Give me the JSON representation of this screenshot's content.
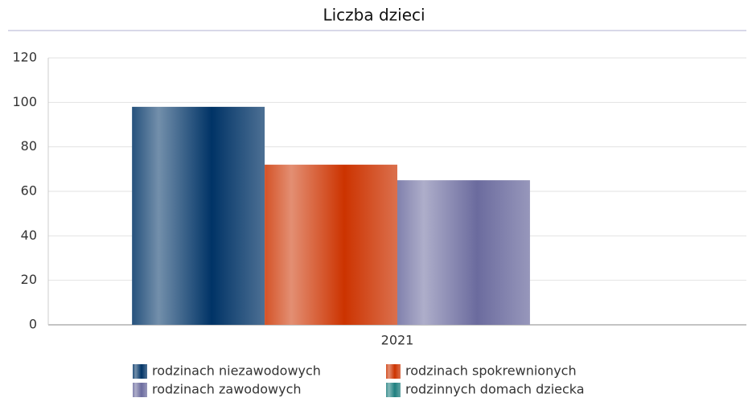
{
  "chart_data": {
    "type": "bar",
    "title": "Liczba dzieci",
    "categories": [
      "2021"
    ],
    "series": [
      {
        "name": "rodzinach niezawodowych",
        "color": "#003366",
        "values": [
          98
        ]
      },
      {
        "name": "rodzinach spokrewnionych",
        "color": "#cc3300",
        "values": [
          72
        ]
      },
      {
        "name": "rodzinach zawodowych",
        "color": "#6b6b9e",
        "values": [
          65
        ]
      },
      {
        "name": "rodzinnych domach dziecka",
        "color": "#1f7f7f",
        "values": [
          0
        ]
      }
    ],
    "ylim": [
      0,
      120
    ],
    "yticks": [
      0,
      20,
      40,
      60,
      80,
      100,
      120
    ],
    "grid": true,
    "legend": "bottom"
  }
}
